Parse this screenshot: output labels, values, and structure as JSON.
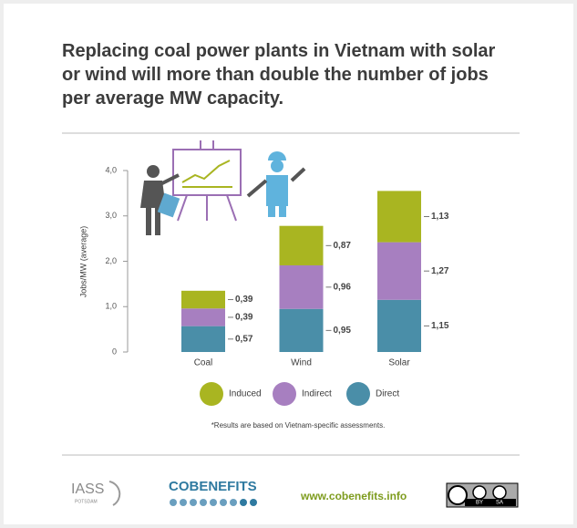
{
  "chart_data": {
    "type": "stacked-bar",
    "title": "Replacing coal power plants in Vietnam with solar or wind will more than double the number of jobs per average MW capacity.",
    "y_label": "Jobs/MW (average)",
    "categories": [
      "Coal",
      "Wind",
      "Solar"
    ],
    "series": [
      {
        "name": "Induced",
        "color": "#a9b521",
        "values": [
          0.39,
          0.87,
          1.13
        ],
        "value_labels": [
          "0,39",
          "0,87",
          "1,13"
        ]
      },
      {
        "name": "Indirect",
        "color": "#a77fc0",
        "values": [
          0.39,
          0.96,
          1.27
        ],
        "value_labels": [
          "0,39",
          "0,96",
          "1,27"
        ]
      },
      {
        "name": "Direct",
        "color": "#4a8ea8",
        "values": [
          0.57,
          0.95,
          1.15
        ],
        "value_labels": [
          "0,57",
          "0,95",
          "1,15"
        ]
      }
    ],
    "ylim": [
      0,
      4
    ],
    "yticks": [
      0,
      {
        "value": 1,
        "label": "1,0"
      },
      {
        "value": 2,
        "label": "2,0"
      },
      {
        "value": 3,
        "label": "3,0"
      },
      {
        "value": 4,
        "label": "4,0"
      }
    ],
    "footnote": "*Results are based on Vietnam-specific assessments."
  },
  "footer": {
    "iass": "IASS",
    "iass_sub": "POTSDAM",
    "cobenefits": "COBENEFITS",
    "url": "www.cobenefits.info",
    "license": [
      "BY",
      "SA"
    ]
  }
}
